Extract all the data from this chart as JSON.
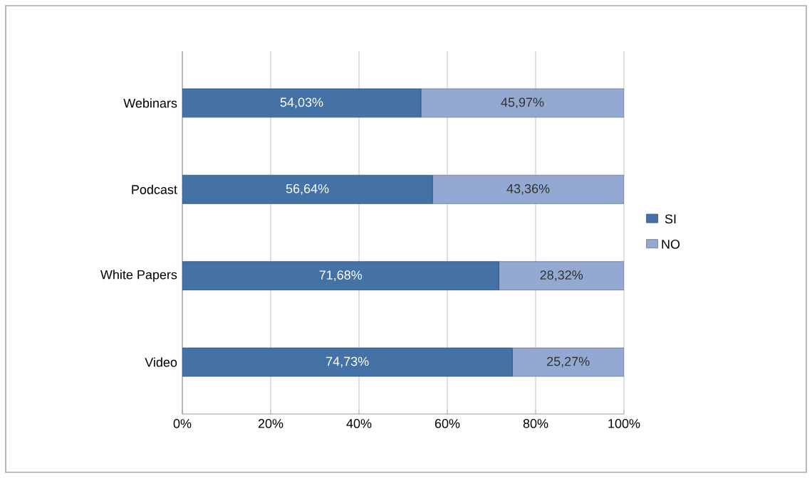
{
  "chart_data": {
    "type": "bar",
    "orientation": "horizontal",
    "stacked": true,
    "categories": [
      "Webinars",
      "Podcast",
      "White Papers",
      "Video"
    ],
    "series": [
      {
        "name": "SI",
        "color": "#4471a6",
        "values": [
          54.03,
          56.64,
          71.68,
          74.73
        ],
        "value_labels": [
          "54,03%",
          "56,64%",
          "71,68%",
          "74,73%"
        ]
      },
      {
        "name": "NO",
        "color": "#93a9d2",
        "values": [
          45.97,
          43.36,
          28.32,
          25.27
        ],
        "value_labels": [
          "45,97%",
          "43,36%",
          "28,32%",
          "25,27%"
        ]
      }
    ],
    "xlim": [
      0,
      100
    ],
    "xticks": [
      {
        "value": 0,
        "label": "0%"
      },
      {
        "value": 20,
        "label": "20%"
      },
      {
        "value": 40,
        "label": "40%"
      },
      {
        "value": 60,
        "label": "60%"
      },
      {
        "value": 80,
        "label": "80%"
      },
      {
        "value": 100,
        "label": "100%"
      }
    ],
    "grid": "x",
    "legend": "right"
  }
}
